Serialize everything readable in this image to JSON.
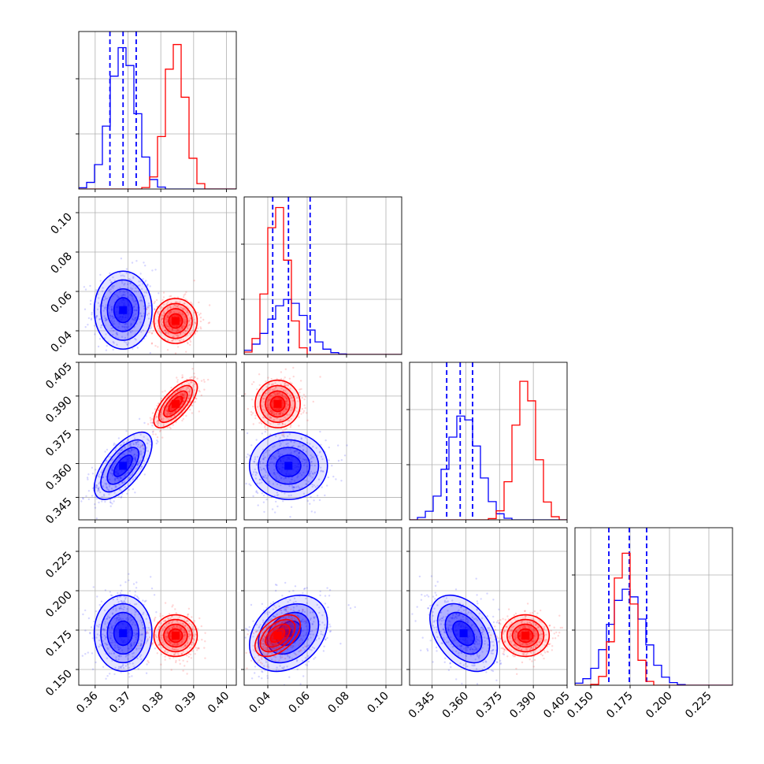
{
  "chart_data": {
    "type": "corner",
    "title": "",
    "n_params": 4,
    "param_labels": [
      "",
      "",
      "",
      ""
    ],
    "grid": true,
    "colors": {
      "blue": "#0000ff",
      "red": "#ff0000",
      "grid": "#b0b0b0"
    },
    "axis_ranges": [
      [
        0.355,
        0.403
      ],
      [
        0.028,
        0.108
      ],
      [
        0.335,
        0.405
      ],
      [
        0.14,
        0.24
      ]
    ],
    "ticks": [
      {
        "values": [
          0.36,
          0.37,
          0.38,
          0.39,
          0.4
        ],
        "labels": [
          "0.36",
          "0.37",
          "0.38",
          "0.39",
          "0.40"
        ]
      },
      {
        "values": [
          0.04,
          0.06,
          0.08,
          0.1
        ],
        "labels": [
          "0.04",
          "0.06",
          "0.08",
          "0.10"
        ]
      },
      {
        "values": [
          0.345,
          0.36,
          0.375,
          0.39,
          0.405
        ],
        "labels": [
          "0.345",
          "0.360",
          "0.375",
          "0.390",
          "0.405"
        ]
      },
      {
        "values": [
          0.15,
          0.175,
          0.2,
          0.225
        ],
        "labels": [
          "0.150",
          "0.175",
          "0.200",
          "0.225"
        ]
      }
    ],
    "series": [
      {
        "color": "blue",
        "means": [
          0.3685,
          0.0505,
          0.359,
          0.173
        ],
        "sigmas": [
          0.004,
          0.009,
          0.0068,
          0.011
        ],
        "corr": {
          "0-1": 0.0,
          "0-2": 0.65,
          "0-3": 0.0,
          "1-2": 0.0,
          "1-3": 0.3,
          "2-3": -0.4
        },
        "hist_peaks": [
          0.9,
          0.35,
          0.67,
          0.61
        ],
        "quantiles": [
          [
            0.3645,
            0.3685,
            0.3725
          ],
          [
            0.0425,
            0.0505,
            0.0615
          ],
          [
            0.3515,
            0.3575,
            0.363
          ],
          [
            0.1615,
            0.1745,
            0.1855
          ]
        ]
      },
      {
        "color": "red",
        "means": [
          0.3845,
          0.045,
          0.3865,
          0.1715
        ],
        "sigmas": [
          0.003,
          0.0052,
          0.0048,
          0.006
        ],
        "corr": {
          "0-1": 0.0,
          "0-2": 0.7,
          "0-3": 0.0,
          "1-2": 0.0,
          "1-3": 0.5,
          "2-3": 0.0
        },
        "hist_peaks": [
          0.93,
          0.95,
          0.89,
          0.85
        ]
      }
    ]
  }
}
